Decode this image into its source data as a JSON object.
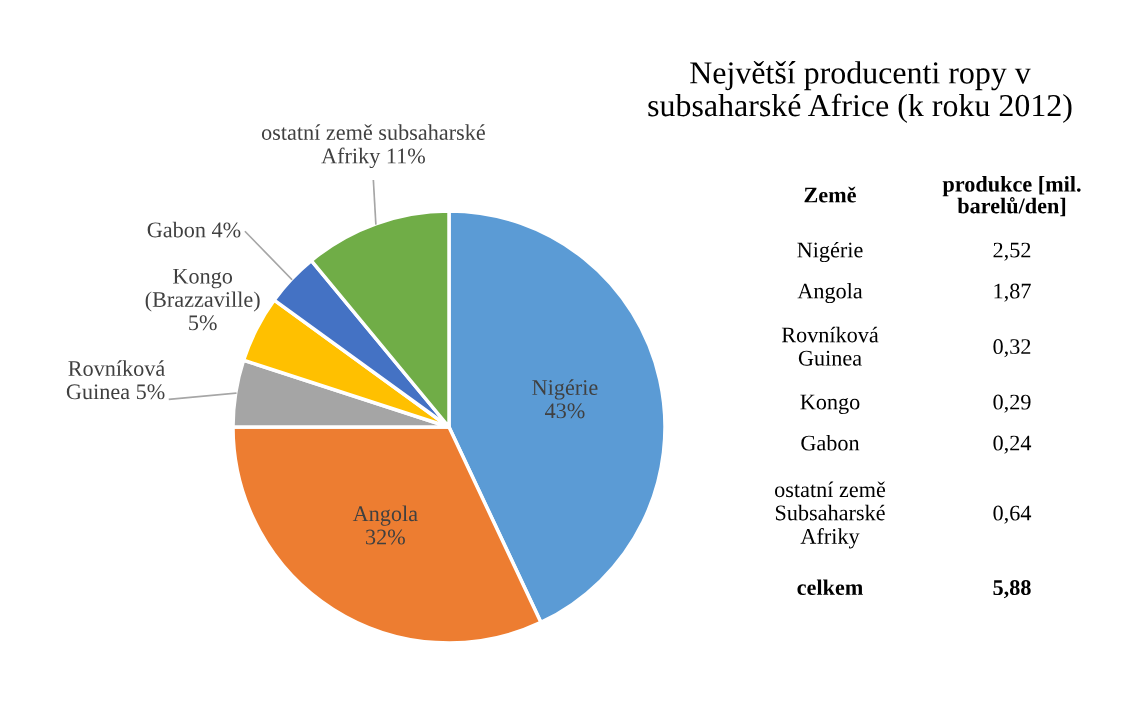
{
  "chart_data": [
    {
      "type": "pie",
      "title": "Největší producenti ropy v\nsubsaharské Africe (k roku 2012)",
      "categories": [
        "Nigérie\n43%",
        "Angola\n32%",
        "Rovníková\nGuinea 5%",
        "Kongo\n(Brazzaville)\n5%",
        "Gabon 4%",
        "ostatní země subsaharské\nAfriky 11%"
      ],
      "values": [
        43,
        32,
        5,
        5,
        4,
        11
      ],
      "colors": [
        "#5b9bd5",
        "#ed7d31",
        "#a5a5a5",
        "#ffc000",
        "#4472c4",
        "#70ad47"
      ]
    },
    {
      "type": "other",
      "categories": [
        "Nigérie",
        "Angola",
        "Rovníková\nGuinea",
        "Kongo",
        "Gabon",
        "ostatní země\nSubsaharské\nAfriky"
      ],
      "values": [
        2.52,
        1.87,
        0.32,
        0.29,
        0.24,
        0.64
      ],
      "value_labels": [
        "2,52",
        "1,87",
        "0,32",
        "0,29",
        "0,24",
        "0,64"
      ],
      "annotations": [
        "Země",
        "produkce [mil.\nbarelů/den]",
        "celkem",
        "5,88"
      ]
    }
  ]
}
